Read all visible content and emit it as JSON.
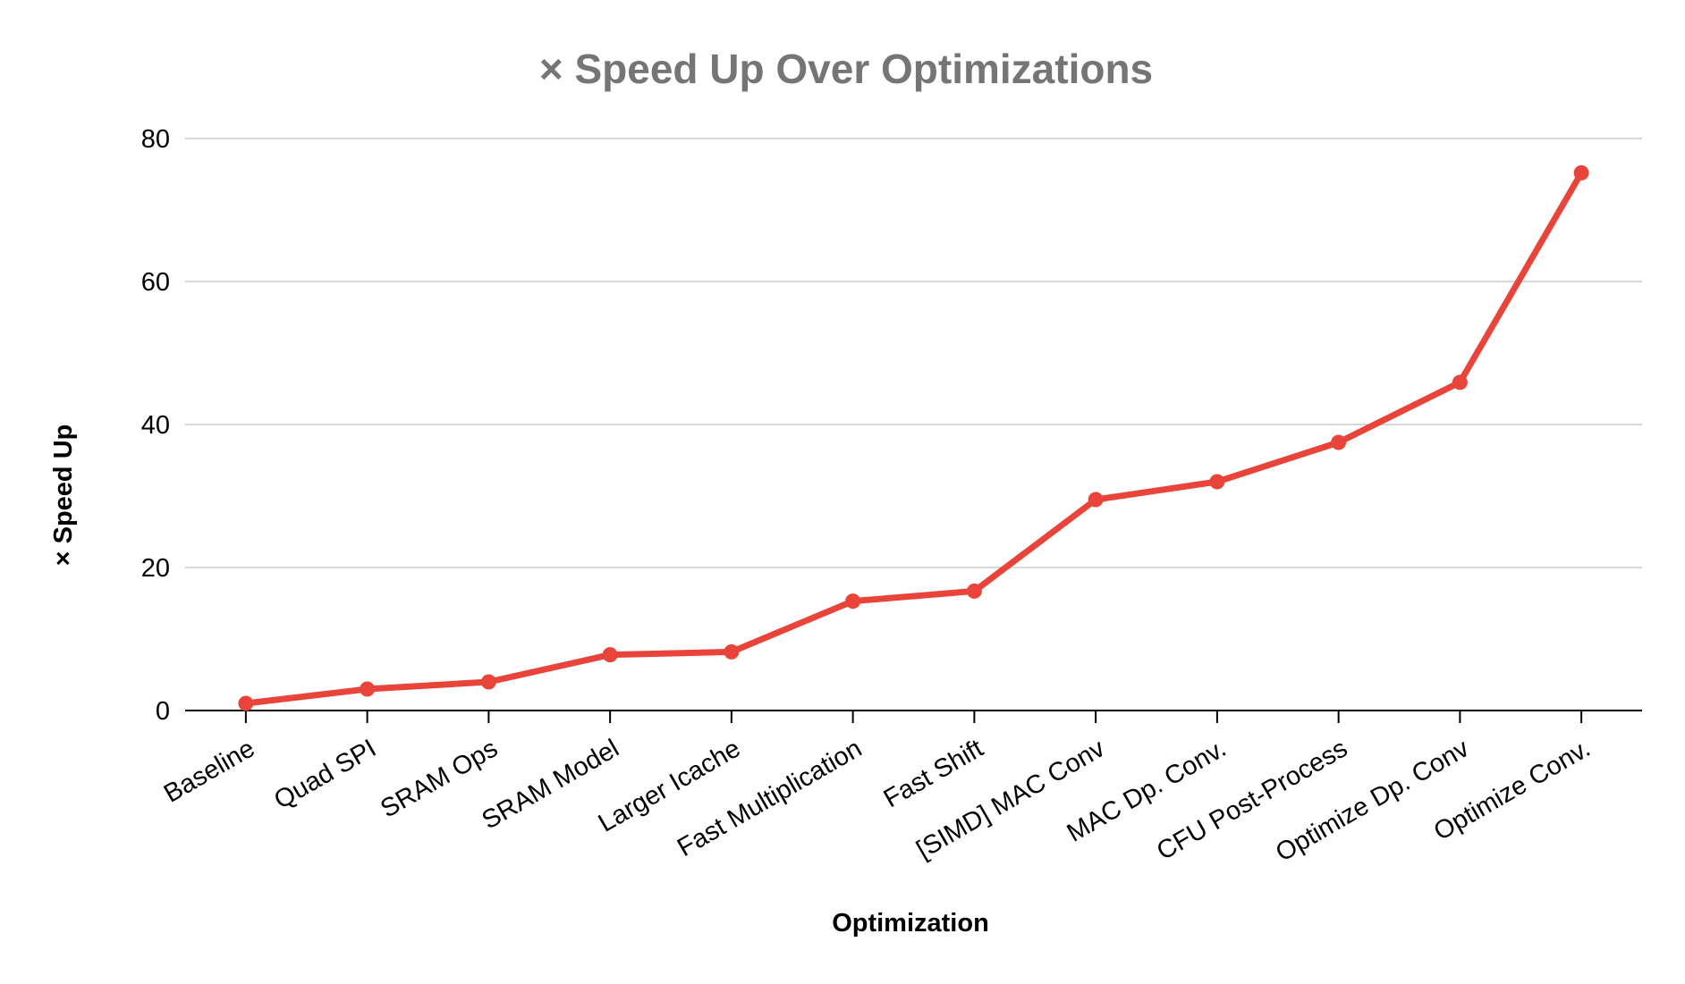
{
  "chart_data": {
    "type": "line",
    "title": "× Speed Up Over Optimizations",
    "xlabel": "Optimization",
    "ylabel": "× Speed Up",
    "categories": [
      "Baseline",
      "Quad SPI",
      "SRAM Ops",
      "SRAM Model",
      "Larger Icache",
      "Fast Multiplication",
      "Fast Shift",
      "[SIMD] MAC Conv",
      "MAC Dp. Conv.",
      "CFU Post-Process",
      "Optimize Dp. Conv",
      "Optimize Conv."
    ],
    "series": [
      {
        "values": [
          1,
          3,
          4,
          7.8,
          8.2,
          15.3,
          16.7,
          29.5,
          32,
          37.5,
          45.9,
          75.2
        ]
      }
    ],
    "ylim": [
      0,
      80
    ],
    "yticks": [
      0,
      20,
      40,
      60,
      80
    ],
    "grid": true,
    "legend": "none",
    "colors": {
      "series": "#e8443a",
      "title": "#757575"
    }
  }
}
